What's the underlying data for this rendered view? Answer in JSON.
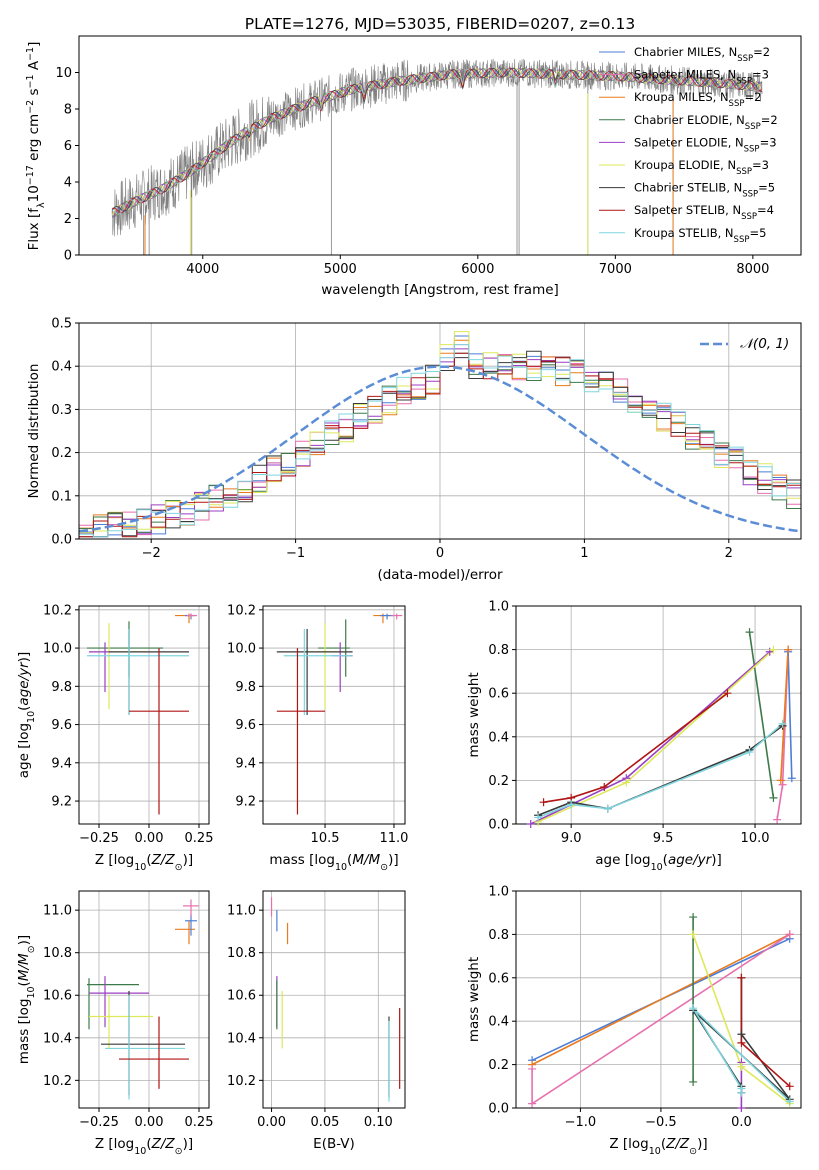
{
  "colors": {
    "Chabrier MILES": "#4c7ed6",
    "Salpeter MILES": "#e76fae",
    "Kroupa MILES": "#e87b1f",
    "Chabrier ELODIE": "#3d7a4a",
    "Salpeter ELODIE": "#9b3fc2",
    "Kroupa ELODIE": "#dde85a",
    "Chabrier STELIB": "#3a3a3a",
    "Salpeter STELIB": "#b01515",
    "Kroupa STELIB": "#7fd6df",
    "noise": "#808080",
    "normal": "#5b8dd6"
  },
  "chart_data": [
    {
      "id": "spectrum",
      "type": "line",
      "title": "PLATE=1276, MJD=53035, FIBERID=0207, z=0.13",
      "xlabel": "wavelength [Angstrom, rest frame]",
      "ylabel": "Flux [fλ10⁻¹⁷ erg cm⁻² s⁻¹ A⁻¹]",
      "xlim": [
        3100,
        8350
      ],
      "ylim": [
        0,
        12
      ],
      "xticks": [
        4000,
        5000,
        6000,
        7000,
        8000
      ],
      "yticks": [
        0,
        2,
        4,
        6,
        8,
        10
      ],
      "grid": false,
      "legend_position": "top-right",
      "legend": [
        {
          "label": "Chabrier MILES, N",
          "sub": "SSP",
          "tail": "=2"
        },
        {
          "label": "Salpeter MILES, N",
          "sub": "SSP",
          "tail": "=3"
        },
        {
          "label": "Kroupa MILES, N",
          "sub": "SSP",
          "tail": "=2"
        },
        {
          "label": "Chabrier ELODIE, N",
          "sub": "SSP",
          "tail": "=2"
        },
        {
          "label": "Salpeter ELODIE, N",
          "sub": "SSP",
          "tail": "=3"
        },
        {
          "label": "Kroupa ELODIE, N",
          "sub": "SSP",
          "tail": "=3"
        },
        {
          "label": "Chabrier STELIB, N",
          "sub": "SSP",
          "tail": "=5"
        },
        {
          "label": "Salpeter STELIB, N",
          "sub": "SSP",
          "tail": "=4"
        },
        {
          "label": "Kroupa STELIB, N",
          "sub": "SSP",
          "tail": "=5"
        }
      ],
      "continuum": [
        [
          3340,
          2.3
        ],
        [
          3500,
          2.9
        ],
        [
          3700,
          3.6
        ],
        [
          3900,
          4.5
        ],
        [
          4100,
          5.6
        ],
        [
          4300,
          6.7
        ],
        [
          4500,
          7.5
        ],
        [
          4800,
          8.4
        ],
        [
          5100,
          9.1
        ],
        [
          5400,
          9.5
        ],
        [
          5800,
          9.9
        ],
        [
          6200,
          10.0
        ],
        [
          6600,
          9.9
        ],
        [
          7000,
          9.8
        ],
        [
          7400,
          9.6
        ],
        [
          7800,
          9.4
        ],
        [
          8070,
          9.2
        ]
      ],
      "spikes_down": [
        [
          3570,
          0.0
        ],
        [
          3610,
          0.0
        ],
        [
          3920,
          0.0
        ],
        [
          4935,
          0.0
        ],
        [
          6285,
          0.0
        ],
        [
          6300,
          0.0
        ],
        [
          6800,
          0.0
        ],
        [
          7420,
          0.0
        ]
      ],
      "model_dips": [
        [
          4000,
          6.2
        ],
        [
          4340,
          5.6
        ],
        [
          4860,
          7.2
        ],
        [
          5175,
          7.4
        ],
        [
          5890,
          8.1
        ],
        [
          6563,
          8.3
        ]
      ]
    },
    {
      "id": "residuals",
      "type": "histogram",
      "xlabel": "(data-model)/error",
      "ylabel": "Normed distribution",
      "xlim": [
        -2.5,
        2.5
      ],
      "ylim": [
        0,
        0.5
      ],
      "xticks": [
        -2,
        -1,
        0,
        1,
        2
      ],
      "yticks": [
        0.0,
        0.1,
        0.2,
        0.3,
        0.4,
        0.5
      ],
      "grid": true,
      "legend_position": "top-right",
      "normal_label": "𝒩(0, 1)",
      "bin_edges_start": -2.5,
      "bin_width": 0.1,
      "base_heights": [
        0.02,
        0.025,
        0.03,
        0.035,
        0.04,
        0.045,
        0.055,
        0.065,
        0.075,
        0.09,
        0.105,
        0.12,
        0.14,
        0.16,
        0.18,
        0.2,
        0.22,
        0.24,
        0.26,
        0.28,
        0.3,
        0.32,
        0.34,
        0.355,
        0.37,
        0.38,
        0.39,
        0.395,
        0.4,
        0.4,
        0.4,
        0.4,
        0.395,
        0.39,
        0.38,
        0.37,
        0.355,
        0.34,
        0.32,
        0.3,
        0.28,
        0.26,
        0.24,
        0.22,
        0.2,
        0.18,
        0.16,
        0.14,
        0.12,
        0.105
      ],
      "peak_heights": [
        0.47,
        0.45,
        0.46,
        0.43,
        0.44,
        0.48,
        0.42,
        0.43,
        0.45
      ]
    },
    {
      "id": "age-vs-Z",
      "type": "errorbar",
      "xlabel": "Z [log10(Z/Z⊙)]",
      "ylabel": "age [log10(age/yr)]",
      "xlim": [
        -0.35,
        0.3
      ],
      "ylim": [
        9.08,
        10.22
      ],
      "xticks": [
        -0.25,
        0.0,
        0.25
      ],
      "xticklabels": [
        "−0.25",
        "0.00",
        "0.25"
      ],
      "yticks": [
        9.2,
        9.4,
        9.6,
        9.8,
        10.0,
        10.2
      ],
      "grid": true,
      "points": [
        {
          "s": "Chabrier ELODIE",
          "x": -0.1,
          "xlo": -0.31,
          "xhi": 0.07,
          "y": 10.0,
          "ylo": 9.85,
          "yhi": 10.14
        },
        {
          "s": "Kroupa ELODIE",
          "x": -0.2,
          "xlo": -0.3,
          "xhi": -0.01,
          "y": 9.98,
          "ylo": 9.68,
          "yhi": 10.13
        },
        {
          "s": "Salpeter ELODIE",
          "x": -0.22,
          "xlo": -0.3,
          "xhi": -0.2,
          "y": 9.98,
          "ylo": 9.77,
          "yhi": 10.03
        },
        {
          "s": "Chabrier STELIB",
          "x": -0.1,
          "xlo": -0.2,
          "xhi": 0.2,
          "y": 9.98,
          "ylo": 9.65,
          "yhi": 10.1
        },
        {
          "s": "Kroupa STELIB",
          "x": -0.1,
          "xlo": -0.31,
          "xhi": 0.2,
          "y": 9.96,
          "ylo": 9.65,
          "yhi": 10.1
        },
        {
          "s": "Salpeter STELIB",
          "x": 0.05,
          "xlo": -0.1,
          "xhi": 0.2,
          "y": 9.67,
          "ylo": 9.13,
          "yhi": 10.0
        },
        {
          "s": "Kroupa MILES",
          "x": 0.2,
          "xlo": 0.13,
          "xhi": 0.22,
          "y": 10.17,
          "ylo": 10.13,
          "yhi": 10.18
        },
        {
          "s": "Chabrier MILES",
          "x": 0.21,
          "xlo": 0.18,
          "xhi": 0.23,
          "y": 10.17,
          "ylo": 10.15,
          "yhi": 10.18
        },
        {
          "s": "Salpeter MILES",
          "x": 0.21,
          "xlo": 0.19,
          "xhi": 0.24,
          "y": 10.17,
          "ylo": 10.16,
          "yhi": 10.18
        }
      ]
    },
    {
      "id": "age-vs-mass",
      "type": "errorbar",
      "xlabel": "mass [log10(M/M⊙)]",
      "ylabel": "",
      "xlim": [
        10.05,
        11.08
      ],
      "ylim": [
        9.08,
        10.22
      ],
      "xticks": [
        10.5,
        11.0
      ],
      "xticklabels": [
        "10.5",
        "11.0"
      ],
      "yticks": [
        9.2,
        9.4,
        9.6,
        9.8,
        10.0,
        10.2
      ],
      "grid": true,
      "points": [
        {
          "s": "Chabrier ELODIE",
          "x": 10.65,
          "xlo": 10.45,
          "xhi": 10.68,
          "y": 10.0,
          "ylo": 9.85,
          "yhi": 10.15
        },
        {
          "s": "Kroupa ELODIE",
          "x": 10.5,
          "xlo": 10.35,
          "xhi": 10.65,
          "y": 9.98,
          "ylo": 9.68,
          "yhi": 10.13
        },
        {
          "s": "Salpeter ELODIE",
          "x": 10.61,
          "xlo": 10.55,
          "xhi": 10.7,
          "y": 9.96,
          "ylo": 9.77,
          "yhi": 10.03
        },
        {
          "s": "Chabrier STELIB",
          "x": 10.37,
          "xlo": 10.15,
          "xhi": 10.7,
          "y": 9.98,
          "ylo": 9.65,
          "yhi": 10.1
        },
        {
          "s": "Kroupa STELIB",
          "x": 10.35,
          "xlo": 10.2,
          "xhi": 10.7,
          "y": 9.96,
          "ylo": 9.65,
          "yhi": 10.1
        },
        {
          "s": "Salpeter STELIB",
          "x": 10.3,
          "xlo": 10.15,
          "xhi": 10.5,
          "y": 9.67,
          "ylo": 9.13,
          "yhi": 10.0
        },
        {
          "s": "Kroupa MILES",
          "x": 10.92,
          "xlo": 10.85,
          "xhi": 10.98,
          "y": 10.17,
          "ylo": 10.13,
          "yhi": 10.18
        },
        {
          "s": "Chabrier MILES",
          "x": 10.95,
          "xlo": 10.9,
          "xhi": 11.0,
          "y": 10.17,
          "ylo": 10.15,
          "yhi": 10.18
        },
        {
          "s": "Salpeter MILES",
          "x": 11.02,
          "xlo": 10.98,
          "xhi": 11.06,
          "y": 10.17,
          "ylo": 10.15,
          "yhi": 10.18
        }
      ]
    },
    {
      "id": "mass-weight-vs-age",
      "type": "line",
      "xlabel": "age [log10(age/yr)]",
      "ylabel": "mass weight",
      "xlim": [
        8.7,
        10.25
      ],
      "ylim": [
        0,
        1.0
      ],
      "xticks": [
        9.0,
        9.5,
        10.0
      ],
      "xticklabels": [
        "9.0",
        "9.5",
        "10.0"
      ],
      "yticks": [
        0.0,
        0.2,
        0.4,
        0.6,
        0.8,
        1.0
      ],
      "grid": true,
      "series": [
        {
          "s": "Chabrier MILES",
          "x": [
            10.18,
            10.2
          ],
          "y": [
            0.79,
            0.21
          ]
        },
        {
          "s": "Salpeter MILES",
          "x": [
            10.12,
            10.15,
            10.18
          ],
          "y": [
            0.02,
            0.18,
            0.8
          ]
        },
        {
          "s": "Kroupa MILES",
          "x": [
            10.14,
            10.18
          ],
          "y": [
            0.2,
            0.8
          ]
        },
        {
          "s": "Chabrier ELODIE",
          "x": [
            9.97,
            10.1
          ],
          "y": [
            0.88,
            0.12
          ]
        },
        {
          "s": "Salpeter ELODIE",
          "x": [
            8.78,
            9.3,
            10.08
          ],
          "y": [
            0.0,
            0.21,
            0.79
          ]
        },
        {
          "s": "Kroupa ELODIE",
          "x": [
            8.82,
            9.3,
            10.1
          ],
          "y": [
            0.01,
            0.19,
            0.8
          ]
        },
        {
          "s": "Chabrier STELIB",
          "x": [
            8.82,
            9.0,
            9.2,
            9.97,
            10.15
          ],
          "y": [
            0.04,
            0.1,
            0.07,
            0.34,
            0.45
          ]
        },
        {
          "s": "Salpeter STELIB",
          "x": [
            8.85,
            9.0,
            9.18,
            9.85
          ],
          "y": [
            0.1,
            0.12,
            0.17,
            0.6
          ]
        },
        {
          "s": "Kroupa STELIB",
          "x": [
            8.82,
            9.0,
            9.2,
            9.97,
            10.15
          ],
          "y": [
            0.03,
            0.09,
            0.07,
            0.33,
            0.46
          ]
        }
      ]
    },
    {
      "id": "mass-vs-Z",
      "type": "errorbar",
      "xlabel": "Z [log10(Z/Z⊙)]",
      "ylabel": "mass [log10(M/M⊙)]",
      "xlim": [
        -0.35,
        0.3
      ],
      "ylim": [
        10.07,
        11.09
      ],
      "xticks": [
        -0.25,
        0.0,
        0.25
      ],
      "xticklabels": [
        "−0.25",
        "0.00",
        "0.25"
      ],
      "yticks": [
        10.2,
        10.4,
        10.6,
        10.8,
        11.0
      ],
      "grid": true,
      "points": [
        {
          "s": "Chabrier ELODIE",
          "x": -0.3,
          "xlo": -0.31,
          "xhi": -0.05,
          "y": 10.65,
          "ylo": 10.44,
          "yhi": 10.68
        },
        {
          "s": "Salpeter ELODIE",
          "x": -0.22,
          "xlo": -0.3,
          "xhi": 0.0,
          "y": 10.61,
          "ylo": 10.45,
          "yhi": 10.69
        },
        {
          "s": "Kroupa ELODIE",
          "x": -0.2,
          "xlo": -0.3,
          "xhi": 0.02,
          "y": 10.5,
          "ylo": 10.35,
          "yhi": 10.6
        },
        {
          "s": "Chabrier STELIB",
          "x": -0.1,
          "xlo": -0.24,
          "xhi": 0.18,
          "y": 10.37,
          "ylo": 10.13,
          "yhi": 10.62
        },
        {
          "s": "Kroupa STELIB",
          "x": -0.1,
          "xlo": -0.22,
          "xhi": 0.18,
          "y": 10.35,
          "ylo": 10.11,
          "yhi": 10.6
        },
        {
          "s": "Salpeter STELIB",
          "x": 0.05,
          "xlo": -0.15,
          "xhi": 0.2,
          "y": 10.3,
          "ylo": 10.16,
          "yhi": 10.5
        },
        {
          "s": "Kroupa MILES",
          "x": 0.2,
          "xlo": 0.13,
          "xhi": 0.23,
          "y": 10.91,
          "ylo": 10.84,
          "yhi": 10.95
        },
        {
          "s": "Chabrier MILES",
          "x": 0.21,
          "xlo": 0.18,
          "xhi": 0.24,
          "y": 10.95,
          "ylo": 10.88,
          "yhi": 10.98
        },
        {
          "s": "Salpeter MILES",
          "x": 0.21,
          "xlo": 0.17,
          "xhi": 0.25,
          "y": 11.02,
          "ylo": 10.97,
          "yhi": 11.05
        }
      ]
    },
    {
      "id": "mass-vs-ebv",
      "type": "errorbar",
      "xlabel": "E(B-V)",
      "ylabel": "",
      "xlim": [
        -0.008,
        0.125
      ],
      "ylim": [
        10.07,
        11.09
      ],
      "xticks": [
        0.0,
        0.05,
        0.1
      ],
      "xticklabels": [
        "0.00",
        "0.05",
        "0.10"
      ],
      "yticks": [
        10.2,
        10.4,
        10.6,
        10.8,
        11.0
      ],
      "grid": true,
      "points": [
        {
          "s": "Salpeter MILES",
          "x": 0.0,
          "y": 11.02,
          "ylo": 10.97,
          "yhi": 11.06
        },
        {
          "s": "Chabrier MILES",
          "x": 0.005,
          "y": 10.95,
          "ylo": 10.9,
          "yhi": 11.0
        },
        {
          "s": "Kroupa MILES",
          "x": 0.015,
          "y": 10.91,
          "ylo": 10.84,
          "yhi": 10.94
        },
        {
          "s": "Salpeter ELODIE",
          "x": 0.005,
          "y": 10.61,
          "ylo": 10.45,
          "yhi": 10.69
        },
        {
          "s": "Chabrier ELODIE",
          "x": 0.005,
          "y": 10.6,
          "ylo": 10.44,
          "yhi": 10.67
        },
        {
          "s": "Kroupa ELODIE",
          "x": 0.01,
          "y": 10.5,
          "ylo": 10.35,
          "yhi": 10.62
        },
        {
          "s": "Chabrier STELIB",
          "x": 0.11,
          "y": 10.37,
          "ylo": 10.12,
          "yhi": 10.5
        },
        {
          "s": "Kroupa STELIB",
          "x": 0.11,
          "y": 10.35,
          "ylo": 10.1,
          "yhi": 10.48
        },
        {
          "s": "Salpeter STELIB",
          "x": 0.12,
          "y": 10.3,
          "ylo": 10.16,
          "yhi": 10.54
        }
      ]
    },
    {
      "id": "mass-weight-vs-Z",
      "type": "line",
      "xlabel": "Z [log10(Z/Z⊙)]",
      "ylabel": "mass weight",
      "xlim": [
        -1.4,
        0.37
      ],
      "ylim": [
        0,
        1.0
      ],
      "xticks": [
        -1.0,
        -0.5,
        0.0
      ],
      "xticklabels": [
        "−1.0",
        "−0.5",
        "0.0"
      ],
      "yticks": [
        0.0,
        0.2,
        0.4,
        0.6,
        0.8,
        1.0
      ],
      "grid": true,
      "series": [
        {
          "s": "Chabrier MILES",
          "x": [
            -1.3,
            0.3
          ],
          "y": [
            0.22,
            0.78
          ]
        },
        {
          "s": "Kroupa MILES",
          "x": [
            -1.3,
            0.3
          ],
          "y": [
            0.2,
            0.8
          ]
        },
        {
          "s": "Salpeter MILES",
          "x": [
            -1.3,
            -1.3,
            0.3
          ],
          "y": [
            0.18,
            0.02,
            0.8
          ]
        },
        {
          "s": "Chabrier ELODIE",
          "x": [
            -0.3,
            -0.3
          ],
          "y": [
            0.88,
            0.12
          ]
        },
        {
          "s": "Salpeter ELODIE",
          "x": [
            0.0,
            0.0
          ],
          "y": [
            0.21,
            0.0
          ]
        },
        {
          "s": "Kroupa ELODIE",
          "x": [
            -0.3,
            0.0,
            0.3
          ],
          "y": [
            0.8,
            0.19,
            0.02
          ]
        },
        {
          "s": "Chabrier STELIB",
          "x": [
            0.0,
            0.0,
            0.3,
            -0.3,
            0.0,
            0.0
          ],
          "y": [
            0.6,
            0.34,
            0.04,
            0.45,
            0.1,
            0.07
          ]
        },
        {
          "s": "Salpeter STELIB",
          "x": [
            0.0,
            0.0,
            0.3
          ],
          "y": [
            0.6,
            0.3,
            0.1
          ]
        },
        {
          "s": "Kroupa STELIB",
          "x": [
            0.3,
            -0.3,
            0.0,
            0.0
          ],
          "y": [
            0.03,
            0.46,
            0.09,
            0.07
          ]
        }
      ]
    }
  ]
}
